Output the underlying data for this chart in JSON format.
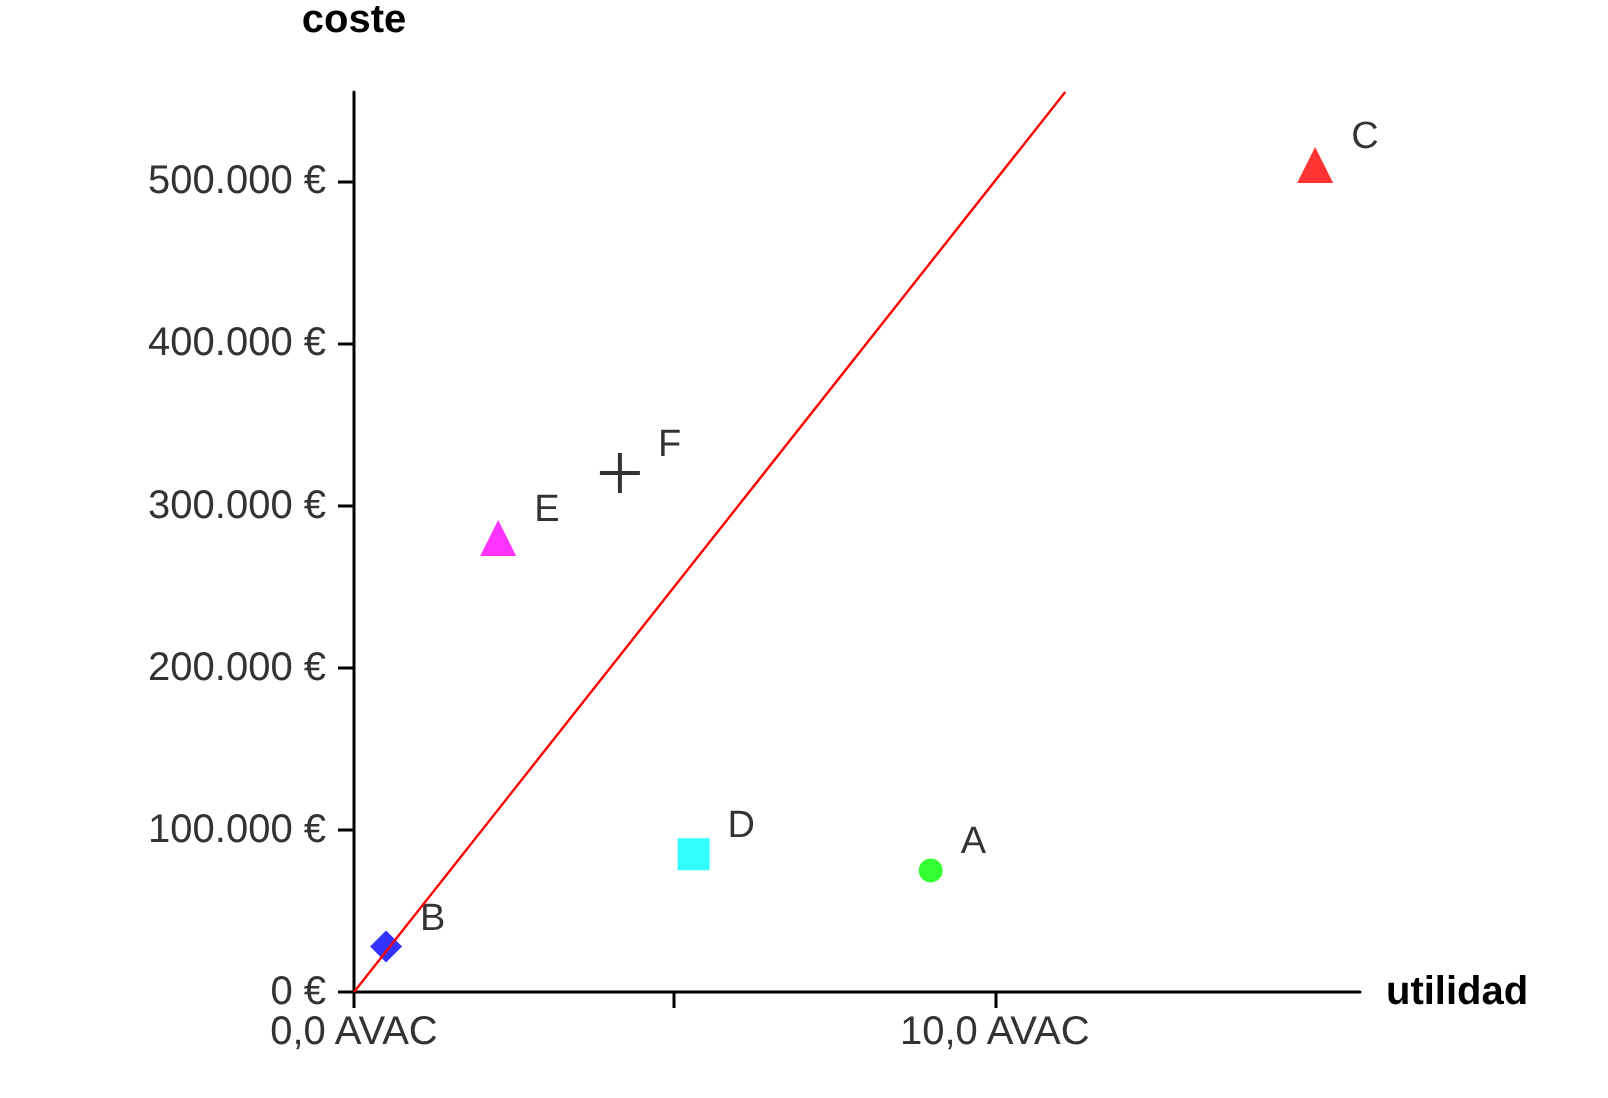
{
  "chart_data": {
    "type": "scatter",
    "xlabel": "utilidad",
    "ylabel": "coste",
    "xlim": [
      0,
      15.7
    ],
    "ylim": [
      0,
      555000
    ],
    "xticks": [
      {
        "value": 0,
        "label": "0,0 AVAC"
      },
      {
        "value": 5,
        "label": null
      },
      {
        "value": 10,
        "label": "10,0 AVAC"
      }
    ],
    "yticks": [
      {
        "value": 0,
        "label": "0 €"
      },
      {
        "value": 100000,
        "label": "100.000 €"
      },
      {
        "value": 200000,
        "label": "200.000 €"
      },
      {
        "value": 300000,
        "label": "300.000 €"
      },
      {
        "value": 400000,
        "label": "400.000 €"
      },
      {
        "value": 500000,
        "label": "500.000 €"
      }
    ],
    "grid": false,
    "legend": false,
    "series": [
      {
        "name": "A",
        "color": "#00ff00",
        "marker": "circle",
        "x": [
          9.0
        ],
        "values": [
          75000
        ]
      },
      {
        "name": "B",
        "color": "#0000ff",
        "marker": "diamond",
        "x": [
          0.5
        ],
        "values": [
          28000
        ]
      },
      {
        "name": "C",
        "color": "#ff0000",
        "marker": "triangle",
        "x": [
          15.0
        ],
        "values": [
          510000
        ]
      },
      {
        "name": "D",
        "color": "#00ffff",
        "marker": "square",
        "x": [
          5.3
        ],
        "values": [
          85000
        ]
      },
      {
        "name": "E",
        "color": "#ff00ff",
        "marker": "triangle",
        "x": [
          2.25
        ],
        "values": [
          280000
        ]
      },
      {
        "name": "F",
        "color": "#000000",
        "marker": "cross",
        "x": [
          4.15
        ],
        "values": [
          320000
        ]
      },
      {
        "type": "line",
        "color": "#ff0000",
        "marker": "none",
        "x": [
          0,
          11.1
        ],
        "values": [
          0,
          555000
        ]
      }
    ]
  }
}
